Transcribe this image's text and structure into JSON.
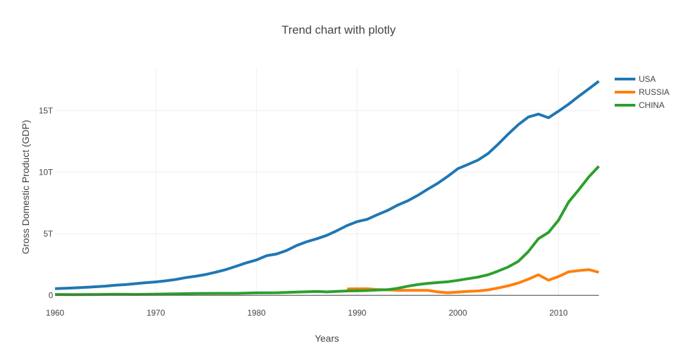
{
  "chart_data": {
    "type": "line",
    "title": "Trend chart with plotly",
    "xlabel": "Years",
    "ylabel": "Gross Domestic Product (GDP)",
    "xlim": [
      1960,
      2014
    ],
    "ylim": [
      -0.15,
      18.4
    ],
    "x_ticks": [
      1960,
      1970,
      1980,
      1990,
      2000,
      2010
    ],
    "x_tick_labels": [
      "1960",
      "1970",
      "1980",
      "1990",
      "2000",
      "2010"
    ],
    "y_ticks": [
      0,
      5,
      10,
      15
    ],
    "y_tick_labels": [
      "0",
      "5T",
      "10T",
      "15T"
    ],
    "y_unit": "trillions",
    "grid": true,
    "legend_position": "top-right",
    "series": [
      {
        "name": "USA",
        "color": "#1f77b4",
        "points": [
          [
            1960,
            0.54
          ],
          [
            1961,
            0.56
          ],
          [
            1962,
            0.6
          ],
          [
            1963,
            0.64
          ],
          [
            1964,
            0.69
          ],
          [
            1965,
            0.74
          ],
          [
            1966,
            0.81
          ],
          [
            1967,
            0.86
          ],
          [
            1968,
            0.94
          ],
          [
            1969,
            1.02
          ],
          [
            1970,
            1.08
          ],
          [
            1971,
            1.17
          ],
          [
            1972,
            1.28
          ],
          [
            1973,
            1.43
          ],
          [
            1974,
            1.55
          ],
          [
            1975,
            1.69
          ],
          [
            1976,
            1.88
          ],
          [
            1977,
            2.09
          ],
          [
            1978,
            2.36
          ],
          [
            1979,
            2.63
          ],
          [
            1980,
            2.86
          ],
          [
            1981,
            3.21
          ],
          [
            1982,
            3.35
          ],
          [
            1983,
            3.64
          ],
          [
            1984,
            4.04
          ],
          [
            1985,
            4.35
          ],
          [
            1986,
            4.59
          ],
          [
            1987,
            4.87
          ],
          [
            1988,
            5.25
          ],
          [
            1989,
            5.66
          ],
          [
            1990,
            5.98
          ],
          [
            1991,
            6.17
          ],
          [
            1992,
            6.54
          ],
          [
            1993,
            6.88
          ],
          [
            1994,
            7.31
          ],
          [
            1995,
            7.66
          ],
          [
            1996,
            8.1
          ],
          [
            1997,
            8.61
          ],
          [
            1998,
            9.09
          ],
          [
            1999,
            9.66
          ],
          [
            2000,
            10.28
          ],
          [
            2001,
            10.62
          ],
          [
            2002,
            10.98
          ],
          [
            2003,
            11.51
          ],
          [
            2004,
            12.27
          ],
          [
            2005,
            13.09
          ],
          [
            2006,
            13.86
          ],
          [
            2007,
            14.48
          ],
          [
            2008,
            14.72
          ],
          [
            2009,
            14.42
          ],
          [
            2010,
            14.96
          ],
          [
            2011,
            15.52
          ],
          [
            2012,
            16.16
          ],
          [
            2013,
            16.77
          ],
          [
            2014,
            17.39
          ]
        ]
      },
      {
        "name": "RUSSIA",
        "color": "#ff7f0e",
        "points": [
          [
            1989,
            0.51
          ],
          [
            1990,
            0.52
          ],
          [
            1991,
            0.52
          ],
          [
            1992,
            0.46
          ],
          [
            1993,
            0.44
          ],
          [
            1994,
            0.4
          ],
          [
            1995,
            0.4
          ],
          [
            1996,
            0.39
          ],
          [
            1997,
            0.4
          ],
          [
            1998,
            0.27
          ],
          [
            1999,
            0.2
          ],
          [
            2000,
            0.26
          ],
          [
            2001,
            0.31
          ],
          [
            2002,
            0.35
          ],
          [
            2003,
            0.43
          ],
          [
            2004,
            0.59
          ],
          [
            2005,
            0.76
          ],
          [
            2006,
            0.99
          ],
          [
            2007,
            1.3
          ],
          [
            2008,
            1.66
          ],
          [
            2009,
            1.22
          ],
          [
            2010,
            1.52
          ],
          [
            2011,
            1.9
          ],
          [
            2012,
            2.0
          ],
          [
            2013,
            2.08
          ],
          [
            2014,
            1.86
          ]
        ]
      },
      {
        "name": "CHINA",
        "color": "#2ca02c",
        "points": [
          [
            1960,
            0.06
          ],
          [
            1962,
            0.05
          ],
          [
            1964,
            0.06
          ],
          [
            1966,
            0.08
          ],
          [
            1968,
            0.07
          ],
          [
            1970,
            0.09
          ],
          [
            1972,
            0.11
          ],
          [
            1974,
            0.14
          ],
          [
            1976,
            0.15
          ],
          [
            1978,
            0.15
          ],
          [
            1980,
            0.19
          ],
          [
            1982,
            0.2
          ],
          [
            1984,
            0.26
          ],
          [
            1986,
            0.3
          ],
          [
            1987,
            0.27
          ],
          [
            1988,
            0.31
          ],
          [
            1989,
            0.35
          ],
          [
            1990,
            0.36
          ],
          [
            1991,
            0.38
          ],
          [
            1992,
            0.42
          ],
          [
            1993,
            0.44
          ],
          [
            1994,
            0.56
          ],
          [
            1995,
            0.73
          ],
          [
            1996,
            0.86
          ],
          [
            1997,
            0.96
          ],
          [
            1998,
            1.03
          ],
          [
            1999,
            1.09
          ],
          [
            2000,
            1.21
          ],
          [
            2001,
            1.34
          ],
          [
            2002,
            1.47
          ],
          [
            2003,
            1.66
          ],
          [
            2004,
            1.96
          ],
          [
            2005,
            2.29
          ],
          [
            2006,
            2.75
          ],
          [
            2007,
            3.55
          ],
          [
            2008,
            4.59
          ],
          [
            2009,
            5.1
          ],
          [
            2010,
            6.1
          ],
          [
            2011,
            7.57
          ],
          [
            2012,
            8.56
          ],
          [
            2013,
            9.61
          ],
          [
            2014,
            10.48
          ]
        ]
      }
    ]
  }
}
